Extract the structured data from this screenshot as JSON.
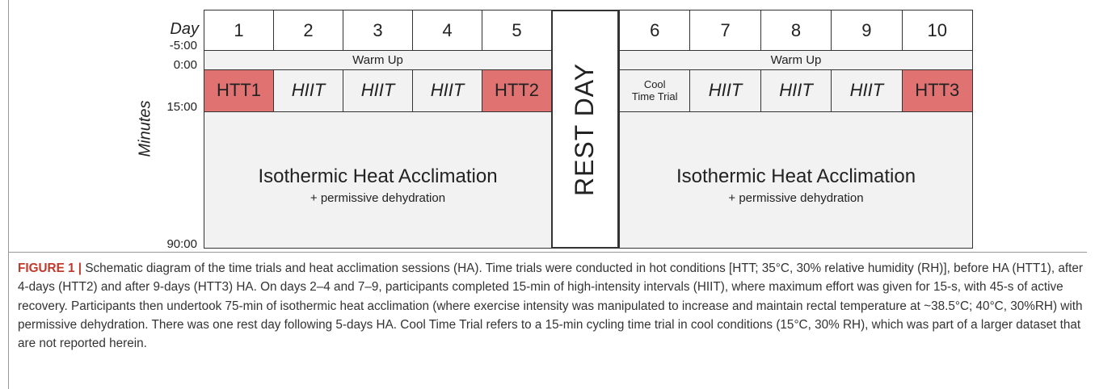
{
  "axis": {
    "title": "Minutes",
    "day_label": "Day",
    "ticks": [
      "-5:00",
      "0:00",
      "15:00",
      "90:00"
    ]
  },
  "blocks": [
    {
      "days": [
        {
          "day": "1",
          "session": [
            "HTT1"
          ],
          "color": "#e07272",
          "italic": false
        },
        {
          "day": "2",
          "session": [
            "HIIT"
          ],
          "color": "#f2f2f2",
          "italic": true
        },
        {
          "day": "3",
          "session": [
            "HIIT"
          ],
          "color": "#f2f2f2",
          "italic": true
        },
        {
          "day": "4",
          "session": [
            "HIIT"
          ],
          "color": "#f2f2f2",
          "italic": true
        },
        {
          "day": "5",
          "session": [
            "HTT2"
          ],
          "color": "#e07272",
          "italic": false
        }
      ],
      "warm_up": "Warm Up",
      "main": "Isothermic Heat Acclimation",
      "sub": "+ permissive dehydration"
    },
    {
      "days": [
        {
          "day": "6",
          "session": [
            "Cool",
            "Time Trial"
          ],
          "color": "#f2f2f2",
          "italic": false
        },
        {
          "day": "7",
          "session": [
            "HIIT"
          ],
          "color": "#f2f2f2",
          "italic": true
        },
        {
          "day": "8",
          "session": [
            "HIIT"
          ],
          "color": "#f2f2f2",
          "italic": true
        },
        {
          "day": "9",
          "session": [
            "HIIT"
          ],
          "color": "#f2f2f2",
          "italic": true
        },
        {
          "day": "10",
          "session": [
            "HTT3"
          ],
          "color": "#e07272",
          "italic": false
        }
      ],
      "warm_up": "Warm Up",
      "main": "Isothermic Heat Acclimation",
      "sub": "+ permissive dehydration"
    }
  ],
  "rest_day": "REST DAY",
  "caption": {
    "label": "FIGURE 1 |",
    "text": "Schematic diagram of the time trials and heat acclimation sessions (HA). Time trials were conducted in hot conditions [HTT; 35°C, 30% relative humidity (RH)], before HA (HTT1), after 4-days (HTT2) and after 9-days (HTT3) HA. On days 2–4 and 7–9, participants completed 15-min of high-intensity intervals (HIIT), where maximum effort was given for 15-s, with 45-s of active recovery. Participants then undertook 75-min of isothermic heat acclimation (where exercise intensity was manipulated to increase and maintain rectal temperature at ~38.5°C; 40°C, 30%RH) with permissive dehydration. There was one rest day following 5-days HA. Cool Time Trial refers to a 15-min cycling time trial in cool conditions (15°C, 30% RH), which was part of a larger dataset that are not reported herein."
  }
}
